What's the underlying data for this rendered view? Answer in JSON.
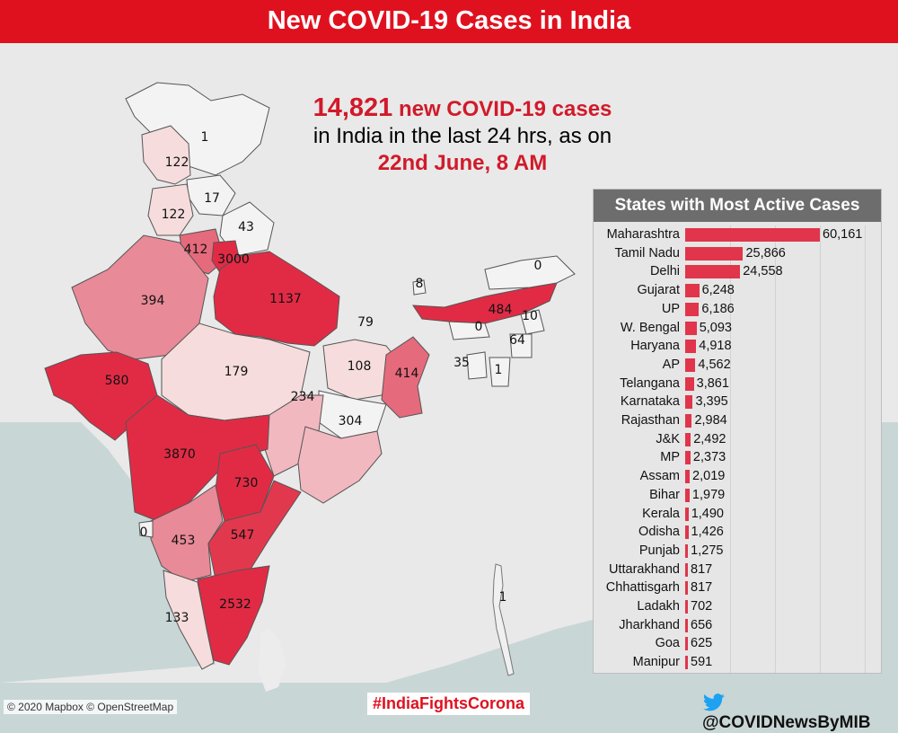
{
  "header": {
    "title": "New COVID-19 Cases in India"
  },
  "headline": {
    "count": "14,821",
    "count_suffix": "new COVID-19 cases",
    "line2": "in India in the last 24 hrs, as on",
    "line3": "22nd June, 8 AM"
  },
  "colors": {
    "header_red": "#e0111f",
    "bar_red": "#e0354a",
    "text_red": "#d11a2a",
    "panel_title_bg": "#6d6d6d"
  },
  "map": {
    "labels": [
      "1",
      "122",
      "17",
      "122",
      "43",
      "412",
      "3000",
      "394",
      "1137",
      "8",
      "0",
      "484",
      "10",
      "79",
      "0",
      "64",
      "580",
      "179",
      "108",
      "414",
      "35",
      "1",
      "234",
      "304",
      "3870",
      "730",
      "0",
      "453",
      "547",
      "2532",
      "133",
      "1"
    ]
  },
  "chart_data": {
    "type": "bar",
    "orientation": "horizontal",
    "title": "States with Most Active Cases",
    "categories": [
      "Maharashtra",
      "Tamil Nadu",
      "Delhi",
      "Gujarat",
      "UP",
      "W. Bengal",
      "Haryana",
      "AP",
      "Telangana",
      "Karnataka",
      "Rajasthan",
      "J&K",
      "MP",
      "Assam",
      "Bihar",
      "Kerala",
      "Odisha",
      "Punjab",
      "Uttarakhand",
      "Chhattisgarh",
      "Ladakh",
      "Jharkhand",
      "Goa",
      "Manipur"
    ],
    "values": [
      60161,
      25866,
      24558,
      6248,
      6186,
      5093,
      4918,
      4562,
      3861,
      3395,
      2984,
      2492,
      2373,
      2019,
      1979,
      1490,
      1426,
      1275,
      817,
      817,
      702,
      656,
      625,
      591
    ],
    "value_labels": [
      "60,161",
      "25,866",
      "24,558",
      "6,248",
      "6,186",
      "5,093",
      "4,918",
      "4,562",
      "3,861",
      "3,395",
      "2,984",
      "2,492",
      "2,373",
      "2,019",
      "1,979",
      "1,490",
      "1,426",
      "1,275",
      "817",
      "817",
      "702",
      "656",
      "625",
      "591"
    ],
    "grid": true
  },
  "footer": {
    "attribution": "© 2020 Mapbox © OpenStreetMap",
    "hashtag": "#IndiaFightsCorona",
    "handle": "@COVIDNewsByMIB"
  }
}
